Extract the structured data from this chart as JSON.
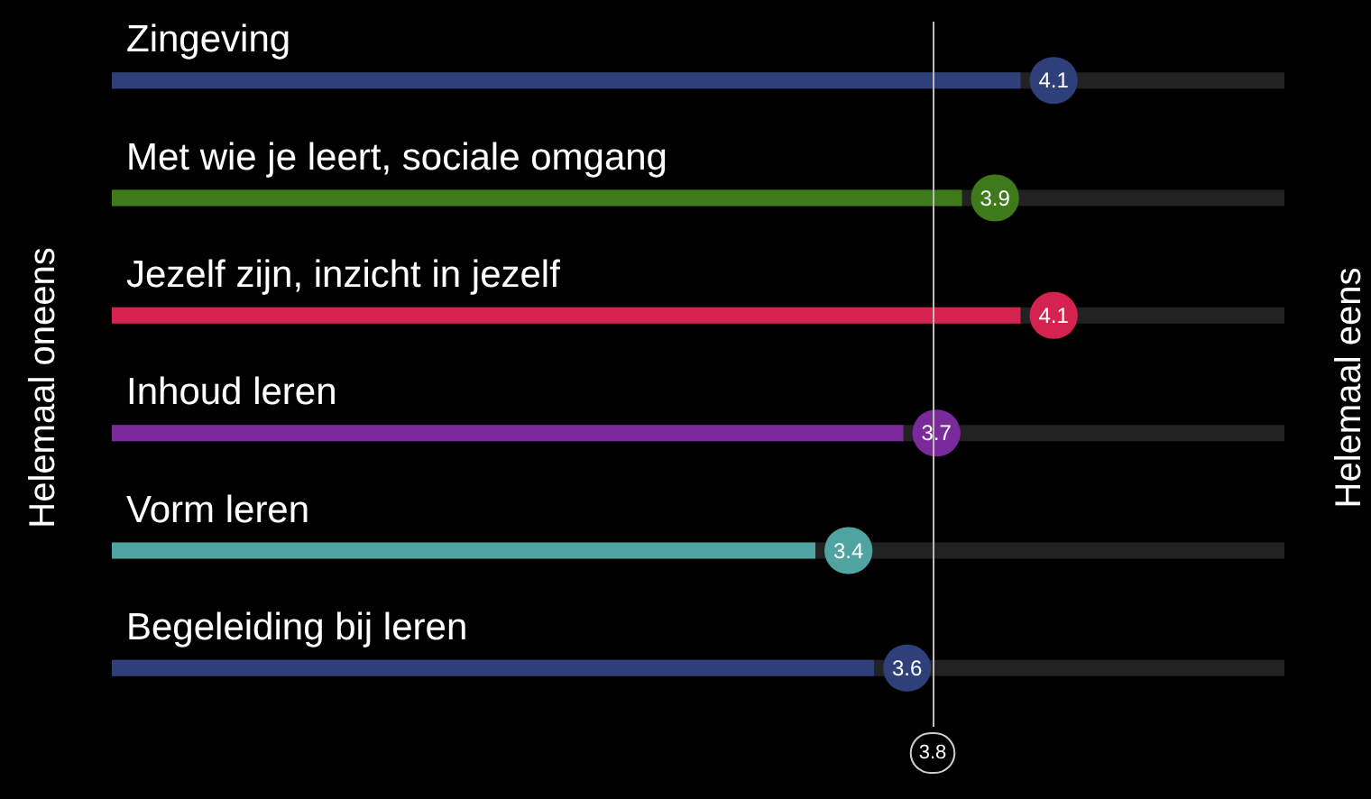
{
  "chart_data": {
    "type": "bar",
    "orientation": "horizontal",
    "categories": [
      "Zingeving",
      "Met wie je leert, sociale omgang",
      "Jezelf zijn, inzicht in jezelf",
      "Inhoud leren",
      "Vorm leren",
      "Begeleiding bij leren"
    ],
    "values": [
      4.1,
      3.9,
      4.1,
      3.7,
      3.4,
      3.6
    ],
    "colors": [
      "#2e3f7a",
      "#3f7a1a",
      "#d4234f",
      "#7a2a9a",
      "#4fa3a0",
      "#2e3f7a"
    ],
    "xlim": [
      1,
      5
    ],
    "data_labels": true,
    "tick_labels": "y",
    "ref_lines": [
      {
        "axis": "x",
        "value": 3.8,
        "label": "3.8",
        "color": "#bbbbbb"
      }
    ],
    "annotations": [
      "Helemaal oneens",
      "Helemaal eens"
    ]
  }
}
